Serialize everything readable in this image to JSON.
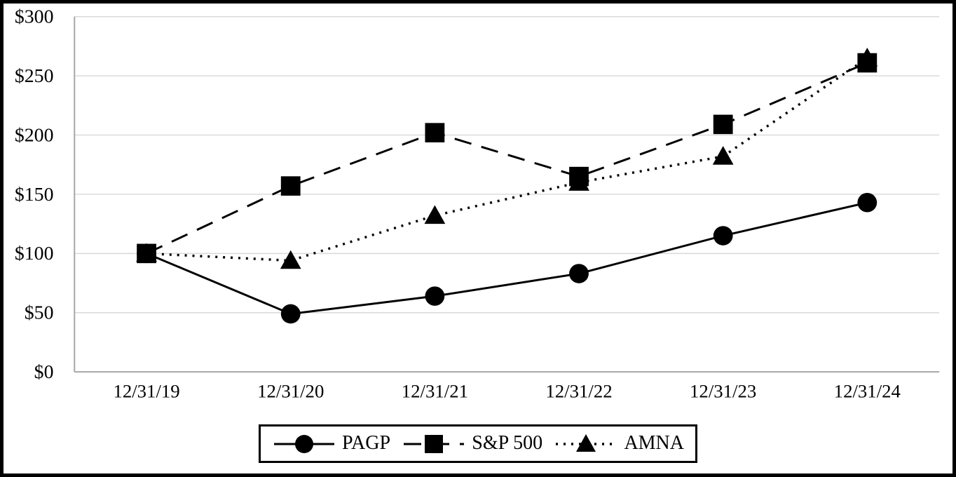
{
  "chart_data": {
    "type": "line",
    "title": "",
    "xlabel": "",
    "ylabel": "",
    "x": [
      "12/31/19",
      "12/31/20",
      "12/31/21",
      "12/31/22",
      "12/31/23",
      "12/31/24"
    ],
    "series": [
      {
        "name": "PAGP",
        "values": [
          100,
          49,
          64,
          83,
          115,
          143
        ],
        "marker": "circle",
        "line_style": "solid",
        "color": "#000000"
      },
      {
        "name": "S&P 500",
        "values": [
          100,
          157,
          202,
          165,
          209,
          261
        ],
        "marker": "square",
        "line_style": "dashed",
        "color": "#000000"
      },
      {
        "name": "AMNA",
        "values": [
          100,
          94,
          132,
          160,
          182,
          265
        ],
        "marker": "triangle",
        "line_style": "dotted",
        "color": "#000000"
      }
    ],
    "ylim": [
      0,
      300
    ],
    "ytick_step": 50,
    "ytick_labels": [
      "$0",
      "$50",
      "$100",
      "$150",
      "$200",
      "$250",
      "$300"
    ],
    "value_prefix": "$",
    "grid": "horizontal",
    "legend_position": "bottom-center",
    "colors": {
      "grid": "#d9d9d9",
      "axis": "#a6a6a6",
      "text": "#000000",
      "background": "#ffffff"
    }
  },
  "legend": {
    "items": [
      {
        "label": "PAGP",
        "marker": "circle",
        "line_style": "solid"
      },
      {
        "label": "S&P 500",
        "marker": "square",
        "line_style": "dashed"
      },
      {
        "label": "AMNA",
        "marker": "triangle",
        "line_style": "dotted"
      }
    ]
  }
}
